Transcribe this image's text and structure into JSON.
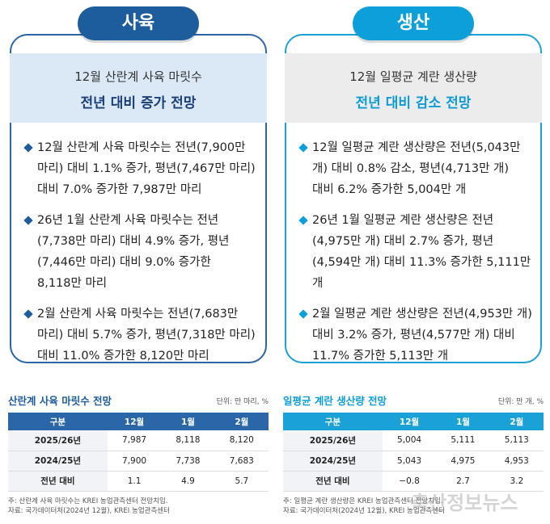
{
  "panels": [
    {
      "badge": "사육",
      "header": {
        "line1": "12월 산란계 사육 마릿수",
        "line2": "전년 대비 증가 전망"
      },
      "bullets": [
        "12월 산란계 사육 마릿수는 전년(7,900만 마리) 대비 1.1% 증가, 평년(7,467만 마리) 대비 7.0% 증가한 7,987만 마리",
        "26년 1월 산란계 사육 마릿수는 전년(7,738만 마리) 대비 4.9% 증가, 평년(7,446만 마리) 대비 9.0% 증가한 8,118만 마리",
        "2월 산란계 사육 마릿수는 전년(7,683만 마리) 대비 5.7% 증가, 평년(7,318만 마리) 대비 11.0% 증가한 8,120만 마리"
      ]
    },
    {
      "badge": "생산",
      "header": {
        "line1": "12월 일평균 계란 생산량",
        "line2": "전년 대비 감소 전망"
      },
      "bullets": [
        "12월 일평균 계란 생산량은 전년(5,043만 개) 대비 0.8% 감소, 평년(4,713만 개) 대비 6.2% 증가한 5,004만 개",
        "26년 1월 일평균 계란 생산량은 전년(4,975만 개) 대비 2.7% 증가, 평년(4,594만 개) 대비 11.3% 증가한 5,111만 개",
        "2월 일평균 계란 생산량은 전년(4,953만 개) 대비 3.2% 증가, 평년(4,577만 개) 대비 11.7% 증가한 5,113만 개"
      ]
    }
  ],
  "tables": [
    {
      "title": "산란계 사육 마릿수 전망",
      "unit": "단위: 만 마리, %",
      "header": [
        "구분",
        "12월",
        "1월",
        "2월"
      ],
      "rows": [
        [
          "2025/26년",
          "7,987",
          "8,118",
          "8,120"
        ],
        [
          "2024/25년",
          "7,900",
          "7,738",
          "7,683"
        ],
        [
          "전년 대비",
          "1.1",
          "4.9",
          "5.7"
        ]
      ],
      "notes": [
        "주: 산란계 사육 마릿수는 KREI 농업관측센터 전망치임.",
        "자료: 국가데이터처(2024년 12월), KREI 농업관측센터"
      ]
    },
    {
      "title": "일평균 계란 생산량 전망",
      "unit": "단위: 만 개, %",
      "header": [
        "구분",
        "12월",
        "1월",
        "2월"
      ],
      "rows": [
        [
          "2025/26년",
          "5,004",
          "5,111",
          "5,113"
        ],
        [
          "2024/25년",
          "5,043",
          "4,975",
          "4,953"
        ],
        [
          "전년 대비",
          "−0.8",
          "2.7",
          "3.2"
        ]
      ],
      "notes": [
        "주: 일평균 계란 생산량은 KREI 농업관측센터 전망치임.",
        "자료: 국가데이터처(2024년 12월), KREI 농업관측센터"
      ]
    }
  ],
  "watermark": "축산정보뉴스"
}
